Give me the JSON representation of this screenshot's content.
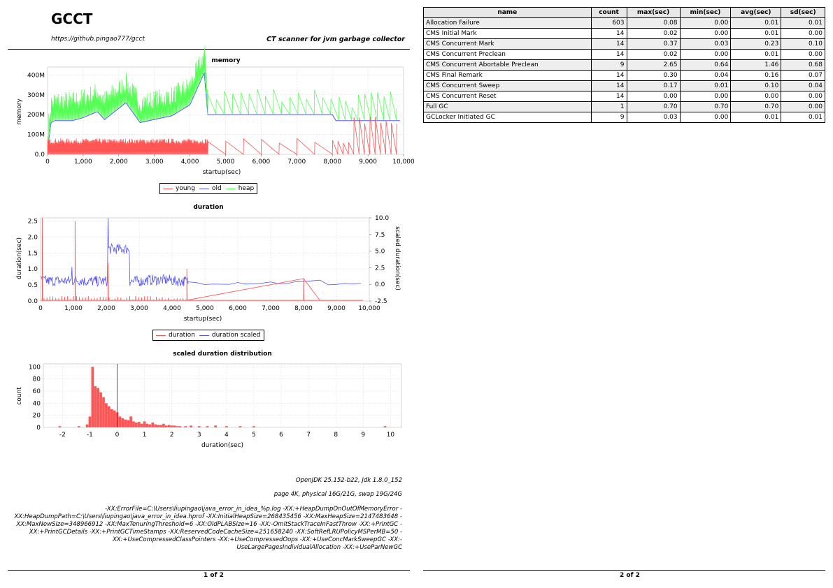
{
  "header": {
    "title": "GCCT",
    "url": "https://github.pingao777/gcct",
    "tagline": "CT scanner for jvm garbage collector"
  },
  "memory_chart": {
    "title": "memory",
    "xlabel": "startup(sec)",
    "ylabel": "memory",
    "legend": [
      "young",
      "old",
      "heap"
    ]
  },
  "duration_chart": {
    "title": "duration",
    "xlabel": "startup(sec)",
    "ylabel": "duration(sec)",
    "ylabel_right": "scaled duration(sec)",
    "legend": [
      "duration",
      "duration scaled"
    ]
  },
  "dist_chart": {
    "title": "scaled duration distribution",
    "xlabel": "duration(sec)",
    "ylabel": "count"
  },
  "colors": {
    "young": "#ff5555",
    "old": "#5555ff",
    "heap": "#55ff55",
    "duration": "#ff5555",
    "scaled": "#5555ff",
    "bar": "#ff5555"
  },
  "chart_data": [
    {
      "type": "line",
      "title": "memory",
      "xlabel": "startup(sec)",
      "ylabel": "memory",
      "xlim": [
        0,
        10000
      ],
      "ylim": [
        0,
        440
      ],
      "xticks": [
        "0",
        "1,000",
        "2,000",
        "3,000",
        "4,000",
        "5,000",
        "6,000",
        "7,000",
        "8,000",
        "9,000",
        "10,000"
      ],
      "yticks": [
        "0.0",
        "100M",
        "200M",
        "300M",
        "400M"
      ],
      "series": [
        {
          "name": "young",
          "x": [
            0,
            1000,
            2000,
            2600,
            2700,
            4300,
            8000,
            8500,
            9900
          ],
          "y": [
            80,
            80,
            80,
            80,
            20,
            80,
            20,
            200,
            200
          ]
        },
        {
          "name": "old",
          "x": [
            0,
            100,
            200,
            700,
            1000,
            1400,
            1600,
            2200,
            2600,
            3500,
            4000,
            4400,
            4500,
            8000,
            8100,
            9900
          ],
          "y": [
            30,
            160,
            170,
            170,
            185,
            215,
            175,
            260,
            160,
            195,
            250,
            410,
            200,
            200,
            170,
            170
          ]
        },
        {
          "name": "heap",
          "x": [
            0,
            100,
            200,
            700,
            1000,
            1400,
            1600,
            2200,
            2600,
            3500,
            4000,
            4400,
            4500,
            8000,
            8500,
            9900
          ],
          "y": [
            100,
            250,
            240,
            260,
            330,
            370,
            280,
            400,
            270,
            350,
            380,
            440,
            360,
            360,
            360,
            360
          ]
        }
      ]
    },
    {
      "type": "line",
      "title": "duration",
      "xlabel": "startup(sec)",
      "ylabel": "duration(sec)",
      "ylabel_right": "scaled duration(sec)",
      "xlim": [
        0,
        10000
      ],
      "ylim": [
        0,
        2.6
      ],
      "ylim_right": [
        -2.5,
        10
      ],
      "xticks": [
        "0",
        "1,000",
        "2,000",
        "3,000",
        "4,000",
        "5,000",
        "6,000",
        "7,000",
        "8,000",
        "9,000",
        "10,000"
      ],
      "yticks": [
        "0.0",
        "0.5",
        "1.0",
        "1.5",
        "2.0",
        "2.5"
      ],
      "yticks_right": [
        "-2.5",
        "0.0",
        "2.5",
        "5.0",
        "7.5",
        "10.0"
      ],
      "series": [
        {
          "name": "duration",
          "x": [
            0,
            50,
            1000,
            1050,
            2000,
            2050,
            2500,
            4450,
            8000,
            8500,
            9800
          ],
          "y": [
            0.02,
            2.6,
            0.02,
            2.5,
            0.02,
            1.2,
            0.02,
            1.0,
            0.7,
            0.02,
            0.02
          ]
        },
        {
          "name": "duration scaled",
          "x": [
            0,
            200,
            1000,
            1300,
            2050,
            2700,
            3200,
            4000,
            5000,
            7000,
            8000,
            8500,
            9800
          ],
          "y": [
            0.5,
            0.4,
            0.6,
            0.3,
            10,
            0.3,
            0.7,
            0.3,
            0.3,
            0.3,
            0.6,
            0.0,
            0.3
          ]
        }
      ]
    },
    {
      "type": "bar",
      "title": "scaled duration distribution",
      "xlabel": "duration(sec)",
      "ylabel": "count",
      "xlim": [
        -2.7,
        10.4
      ],
      "ylim": [
        0,
        105
      ],
      "xticks": [
        "-2",
        "-1",
        "0",
        "1",
        "2",
        "3",
        "4",
        "5",
        "6",
        "7",
        "8",
        "9",
        "10"
      ],
      "yticks": [
        "0",
        "20",
        "40",
        "60",
        "80",
        "100"
      ],
      "bins_x": [
        -2.1,
        -1.4,
        -1.1,
        -1.0,
        -0.9,
        -0.8,
        -0.7,
        -0.6,
        -0.5,
        -0.4,
        -0.3,
        -0.2,
        -0.1,
        0.0,
        0.1,
        0.2,
        0.3,
        0.4,
        0.5,
        0.6,
        0.7,
        0.8,
        0.9,
        1.0,
        1.1,
        1.2,
        1.3,
        1.4,
        1.5,
        1.6,
        1.7,
        1.8,
        1.9,
        2.0,
        2.1,
        2.2,
        2.3,
        2.5,
        2.7,
        3.0,
        3.3,
        3.6,
        4.0,
        4.5,
        5.0,
        9.8
      ],
      "values": [
        2,
        2,
        5,
        18,
        100,
        68,
        65,
        58,
        50,
        40,
        35,
        30,
        28,
        25,
        18,
        15,
        13,
        12,
        18,
        10,
        8,
        9,
        6,
        10,
        6,
        5,
        8,
        5,
        4,
        4,
        6,
        3,
        4,
        3,
        3,
        2,
        2,
        2,
        3,
        2,
        2,
        3,
        2,
        2,
        2,
        2
      ]
    }
  ],
  "footer": {
    "runtime": "OpenJDK 25.152-b22, Jdk 1.8.0_152",
    "memory": "page 4K, physical 16G/21G, swap 19G/24G",
    "jvm_args": "-XX:ErrorFile=C:\\Users\\liupingao\\java_error_in_idea_%p.log -XX:+HeapDumpOnOutOfMemoryError -XX:HeapDumpPath=C:\\Users\\liupingao\\java_error_in_idea.hprof -XX:InitialHeapSize=268435456 -XX:MaxHeapSize=2147483648 -XX:MaxNewSize=348966912 -XX:MaxTenuringThreshold=6 -XX:OldPLABSize=16 -XX:-OmitStackTraceInFastThrow -XX:+PrintGC -XX:+PrintGCDetails -XX:+PrintGCTimeStamps -XX:ReservedCodeCacheSize=251658240 -XX:SoftRefLRUPolicyMSPerMB=50 -XX:+UseCompressedClassPointers -XX:+UseCompressedOops -XX:+UseConcMarkSweepGC -XX:-UseLargePagesIndividualAllocation -XX:+UseParNewGC",
    "page1": "1 of 2",
    "page2": "2 of 2"
  },
  "table": {
    "columns": [
      "name",
      "count",
      "max(sec)",
      "min(sec)",
      "avg(sec)",
      "sd(sec)"
    ],
    "rows": [
      [
        "Allocation Failure",
        "603",
        "0.08",
        "0.00",
        "0.01",
        "0.01"
      ],
      [
        "CMS Initial Mark",
        "14",
        "0.02",
        "0.00",
        "0.01",
        "0.00"
      ],
      [
        "CMS Concurrent Mark",
        "14",
        "0.37",
        "0.03",
        "0.23",
        "0.10"
      ],
      [
        "CMS Concurrent Preclean",
        "14",
        "0.02",
        "0.00",
        "0.01",
        "0.00"
      ],
      [
        "CMS Concurrent Abortable Preclean",
        "9",
        "2.65",
        "0.64",
        "1.46",
        "0.68"
      ],
      [
        "CMS Final Remark",
        "14",
        "0.30",
        "0.04",
        "0.16",
        "0.07"
      ],
      [
        "CMS Concurrent Sweep",
        "14",
        "0.17",
        "0.01",
        "0.10",
        "0.04"
      ],
      [
        "CMS Concurrent Reset",
        "14",
        "0.00",
        "0.00",
        "0.00",
        "0.00"
      ],
      [
        "Full GC",
        "1",
        "0.70",
        "0.70",
        "0.70",
        "0.00"
      ],
      [
        "GCLocker Initiated GC",
        "9",
        "0.03",
        "0.00",
        "0.01",
        "0.01"
      ]
    ]
  }
}
